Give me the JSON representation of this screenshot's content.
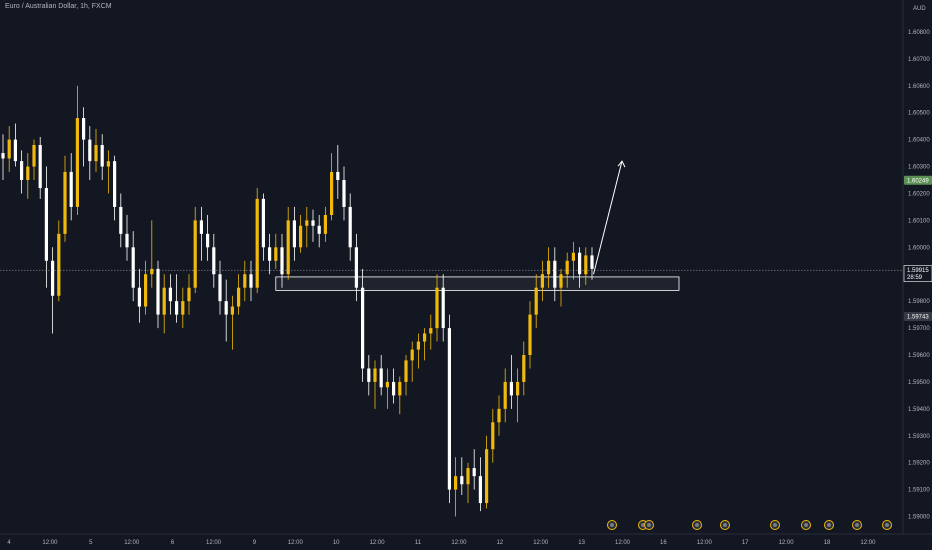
{
  "header": {
    "title": "Euro / Australian Dollar, 1h, FXCM",
    "currency": "AUD"
  },
  "colors": {
    "background": "#131722",
    "bull": "#f0b90b",
    "bear": "#ffffff",
    "axis_text": "#b2b5be",
    "zone_fill": "#2a2e39",
    "price_badge": "#5b8f54",
    "low_badge": "#363a45",
    "event_ring": "#f0b90b"
  },
  "price_labels": {
    "high_marker": "1.60249",
    "current_price": "1.59915",
    "countdown": "28:59",
    "low_marker": "1.59743"
  },
  "chart_data": {
    "type": "candlestick",
    "ylim": [
      1.5895,
      1.609
    ],
    "y_ticks": [
      "1.60800",
      "1.60700",
      "1.60600",
      "1.60500",
      "1.60400",
      "1.60300",
      "1.60200",
      "1.60100",
      "1.60000",
      "1.59900",
      "1.59800",
      "1.59700",
      "1.59600",
      "1.59500",
      "1.59400",
      "1.59300",
      "1.59200",
      "1.59100",
      "1.59000"
    ],
    "x_ticks": [
      "4",
      "12:00",
      "5",
      "12:00",
      "6",
      "12:00",
      "9",
      "12:00",
      "10",
      "12:00",
      "11",
      "12:00",
      "12",
      "12:00",
      "13",
      "12:00",
      "16",
      "12:00",
      "17",
      "12:00",
      "18",
      "12:00"
    ],
    "zone": {
      "low": 1.5984,
      "high": 1.5989
    },
    "arrow": {
      "from_price": 1.599,
      "to_price": 1.6032
    },
    "current_price": 1.59915,
    "event_markers": 10,
    "candles": [
      [
        1.6035,
        1.6042,
        1.6025,
        1.6033
      ],
      [
        1.6033,
        1.6045,
        1.6028,
        1.604
      ],
      [
        1.604,
        1.6046,
        1.603,
        1.6032
      ],
      [
        1.6032,
        1.6036,
        1.602,
        1.6025
      ],
      [
        1.6025,
        1.6035,
        1.6018,
        1.603
      ],
      [
        1.603,
        1.604,
        1.6025,
        1.6038
      ],
      [
        1.6038,
        1.6041,
        1.6018,
        1.6022
      ],
      [
        1.6022,
        1.603,
        1.5985,
        1.5995
      ],
      [
        1.5995,
        1.6,
        1.5968,
        1.5982
      ],
      [
        1.5982,
        1.601,
        1.598,
        1.6005
      ],
      [
        1.6005,
        1.6034,
        1.6002,
        1.6028
      ],
      [
        1.6028,
        1.6035,
        1.601,
        1.6015
      ],
      [
        1.6015,
        1.606,
        1.6012,
        1.6048
      ],
      [
        1.6048,
        1.6052,
        1.603,
        1.604
      ],
      [
        1.604,
        1.6045,
        1.6025,
        1.6032
      ],
      [
        1.6032,
        1.6044,
        1.6028,
        1.6038
      ],
      [
        1.6038,
        1.6042,
        1.6025,
        1.603
      ],
      [
        1.603,
        1.6036,
        1.602,
        1.6032
      ],
      [
        1.6032,
        1.6034,
        1.601,
        1.6015
      ],
      [
        1.6015,
        1.602,
        1.6,
        1.6005
      ],
      [
        1.6005,
        1.6012,
        1.5995,
        1.6
      ],
      [
        1.6,
        1.6006,
        1.598,
        1.5985
      ],
      [
        1.5985,
        1.5992,
        1.5972,
        1.5978
      ],
      [
        1.5978,
        1.5995,
        1.5975,
        1.599
      ],
      [
        1.599,
        1.601,
        1.5985,
        1.5992
      ],
      [
        1.5992,
        1.5995,
        1.597,
        1.5975
      ],
      [
        1.5975,
        1.599,
        1.5968,
        1.5985
      ],
      [
        1.5985,
        1.599,
        1.5975,
        1.598
      ],
      [
        1.598,
        1.599,
        1.5972,
        1.5975
      ],
      [
        1.5975,
        1.5985,
        1.597,
        1.598
      ],
      [
        1.598,
        1.599,
        1.5975,
        1.5985
      ],
      [
        1.5985,
        1.6015,
        1.5983,
        1.601
      ],
      [
        1.601,
        1.6015,
        1.5995,
        1.6005
      ],
      [
        1.6005,
        1.6012,
        1.5995,
        1.6
      ],
      [
        1.6,
        1.6005,
        1.5985,
        1.599
      ],
      [
        1.599,
        1.5995,
        1.5975,
        1.598
      ],
      [
        1.598,
        1.5988,
        1.5965,
        1.5975
      ],
      [
        1.5975,
        1.5982,
        1.5962,
        1.5978
      ],
      [
        1.5978,
        1.599,
        1.5975,
        1.5985
      ],
      [
        1.5985,
        1.5995,
        1.598,
        1.599
      ],
      [
        1.599,
        1.5995,
        1.598,
        1.5985
      ],
      [
        1.5985,
        1.6022,
        1.5983,
        1.6018
      ],
      [
        1.6018,
        1.602,
        1.5995,
        1.6
      ],
      [
        1.6,
        1.6005,
        1.599,
        1.5995
      ],
      [
        1.5995,
        1.6005,
        1.5992,
        1.6
      ],
      [
        1.6,
        1.6005,
        1.5985,
        1.599
      ],
      [
        1.599,
        1.6015,
        1.5988,
        1.601
      ],
      [
        1.601,
        1.6015,
        1.5995,
        1.6
      ],
      [
        1.6,
        1.6012,
        1.5998,
        1.6008
      ],
      [
        1.6008,
        1.6015,
        1.6,
        1.601
      ],
      [
        1.601,
        1.6014,
        1.6002,
        1.6008
      ],
      [
        1.6008,
        1.6012,
        1.6,
        1.6005
      ],
      [
        1.6005,
        1.6015,
        1.6002,
        1.6012
      ],
      [
        1.6012,
        1.6035,
        1.601,
        1.6028
      ],
      [
        1.6028,
        1.6038,
        1.6018,
        1.6025
      ],
      [
        1.6025,
        1.603,
        1.601,
        1.6015
      ],
      [
        1.6015,
        1.602,
        1.5995,
        1.6
      ],
      [
        1.6,
        1.6005,
        1.598,
        1.5985
      ],
      [
        1.5985,
        1.5992,
        1.595,
        1.5955
      ],
      [
        1.5955,
        1.596,
        1.5945,
        1.595
      ],
      [
        1.595,
        1.5958,
        1.594,
        1.5955
      ],
      [
        1.5955,
        1.596,
        1.5945,
        1.5948
      ],
      [
        1.5948,
        1.5955,
        1.594,
        1.595
      ],
      [
        1.595,
        1.5955,
        1.5942,
        1.5945
      ],
      [
        1.5945,
        1.5952,
        1.5938,
        1.595
      ],
      [
        1.595,
        1.596,
        1.5945,
        1.5958
      ],
      [
        1.5958,
        1.5965,
        1.595,
        1.5962
      ],
      [
        1.5962,
        1.5968,
        1.5955,
        1.5965
      ],
      [
        1.5965,
        1.597,
        1.5958,
        1.5968
      ],
      [
        1.5968,
        1.5975,
        1.5962,
        1.597
      ],
      [
        1.597,
        1.599,
        1.5965,
        1.5985
      ],
      [
        1.5985,
        1.599,
        1.5965,
        1.597
      ],
      [
        1.597,
        1.5975,
        1.5905,
        1.591
      ],
      [
        1.591,
        1.5922,
        1.59,
        1.5915
      ],
      [
        1.5915,
        1.5922,
        1.5908,
        1.5912
      ],
      [
        1.5912,
        1.592,
        1.5905,
        1.5918
      ],
      [
        1.5918,
        1.5925,
        1.591,
        1.5915
      ],
      [
        1.5915,
        1.5922,
        1.5902,
        1.5905
      ],
      [
        1.5905,
        1.593,
        1.5903,
        1.5925
      ],
      [
        1.5925,
        1.594,
        1.592,
        1.5935
      ],
      [
        1.5935,
        1.5945,
        1.593,
        1.594
      ],
      [
        1.594,
        1.5955,
        1.5935,
        1.595
      ],
      [
        1.595,
        1.596,
        1.594,
        1.5945
      ],
      [
        1.5945,
        1.5955,
        1.5935,
        1.595
      ],
      [
        1.595,
        1.5965,
        1.5945,
        1.596
      ],
      [
        1.596,
        1.598,
        1.5955,
        1.5975
      ],
      [
        1.5975,
        1.599,
        1.597,
        1.5985
      ],
      [
        1.5985,
        1.5995,
        1.598,
        1.599
      ],
      [
        1.599,
        1.6,
        1.5985,
        1.5995
      ],
      [
        1.5995,
        1.6,
        1.598,
        1.5985
      ],
      [
        1.5985,
        1.5992,
        1.5978,
        1.599
      ],
      [
        1.599,
        1.5998,
        1.5985,
        1.5995
      ],
      [
        1.5995,
        1.6002,
        1.5988,
        1.5998
      ],
      [
        1.5998,
        1.6,
        1.5985,
        1.599
      ],
      [
        1.599,
        1.6,
        1.5986,
        1.5997
      ],
      [
        1.5997,
        1.6,
        1.5988,
        1.5992
      ]
    ]
  }
}
